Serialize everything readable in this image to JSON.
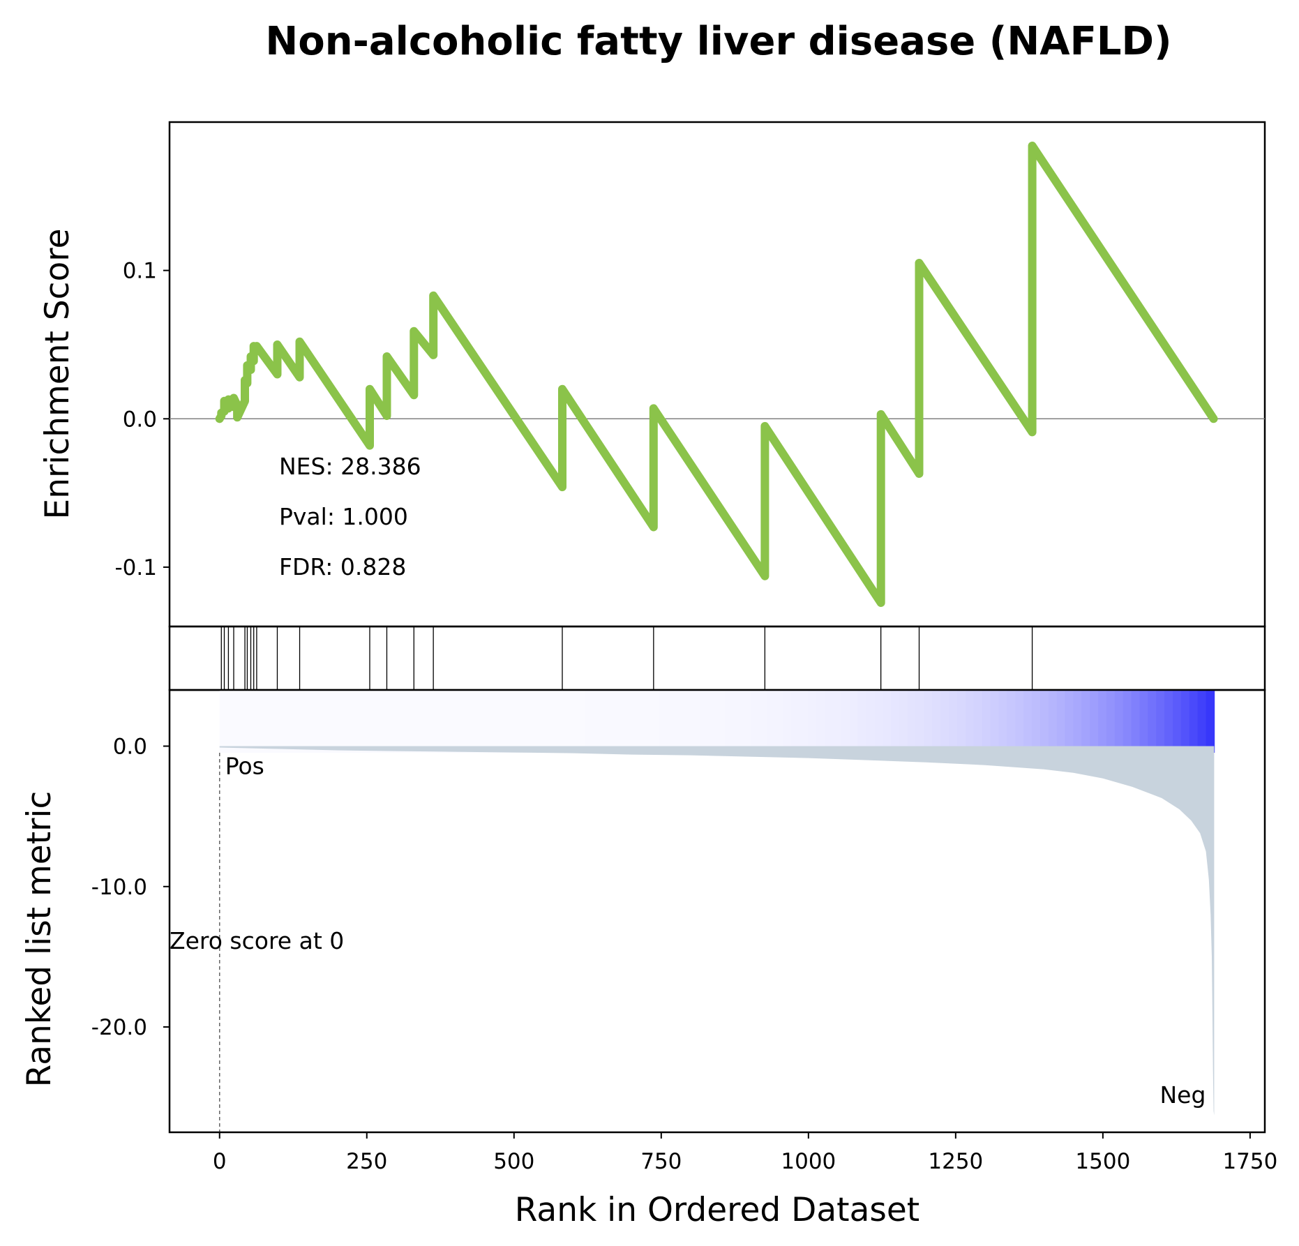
{
  "chart_data": {
    "type": "line",
    "title": "Non-alcoholic fatty liver disease (NAFLD)",
    "xlabel": "Rank in Ordered Dataset",
    "xlim": [
      -85,
      1775
    ],
    "x_ticks": [
      0,
      250,
      500,
      750,
      1000,
      1250,
      1500,
      1750
    ],
    "enrichment_panel": {
      "ylabel": "Enrichment Score",
      "ylim": [
        -0.14,
        0.2
      ],
      "y_ticks": [
        0.1,
        0.0,
        -0.1
      ],
      "y_tick_labels": [
        "0.1",
        "0.0",
        "-0.1"
      ],
      "line_color": "#8bc34a",
      "zero_line": true,
      "stats": {
        "nes": "NES: 28.386",
        "pval": "Pval: 1.000",
        "fdr": "FDR: 0.828"
      },
      "series": [
        {
          "x": [
            0,
            3,
            3,
            8,
            8,
            15,
            15,
            24,
            24,
            30,
            30,
            43,
            43,
            47,
            47,
            53,
            53,
            58,
            58,
            63,
            63,
            98,
            98,
            136,
            136,
            255,
            255,
            284,
            284,
            330,
            330,
            363,
            363,
            582,
            582,
            737,
            737,
            926,
            926,
            1123,
            1123,
            1188,
            1188,
            1380,
            1380,
            1688
          ],
          "y": [
            0.0,
            0.002,
            0.004,
            0.005,
            0.012,
            0.007,
            0.013,
            0.008,
            0.014,
            0.009,
            0.001,
            0.012,
            0.026,
            0.024,
            0.036,
            0.033,
            0.042,
            0.039,
            0.049,
            0.047,
            0.049,
            0.03,
            0.05,
            0.028,
            0.052,
            -0.018,
            0.02,
            0.002,
            0.042,
            0.016,
            0.059,
            0.043,
            0.083,
            -0.046,
            0.02,
            -0.073,
            0.007,
            -0.106,
            -0.005,
            -0.124,
            0.003,
            -0.037,
            0.105,
            -0.009,
            0.184,
            0.0
          ]
        }
      ]
    },
    "hits_panel": {
      "hit_ranks": [
        3,
        8,
        15,
        24,
        43,
        47,
        53,
        58,
        63,
        98,
        136,
        255,
        284,
        330,
        363,
        582,
        737,
        926,
        1123,
        1188,
        1380
      ]
    },
    "ranked_panel": {
      "ylabel": "Ranked list metric",
      "ylim": [
        -27.5,
        4.0
      ],
      "y_ticks": [
        0.0,
        -10.0,
        -20.0
      ],
      "y_tick_labels": [
        "0.0",
        "-10.0",
        "-20.0"
      ],
      "fill_color": "#c8d3dd",
      "pos_label": "Pos",
      "pos_color": "#ff0000",
      "neg_label": "Neg",
      "neg_color": "#0000ff",
      "zero_score_label": "Zero score at 0",
      "zero_score_rank": 0,
      "metric": {
        "x": [
          0,
          100,
          200,
          300,
          400,
          500,
          600,
          700,
          800,
          900,
          1000,
          1100,
          1200,
          1300,
          1400,
          1450,
          1500,
          1550,
          1600,
          1630,
          1650,
          1665,
          1675,
          1680,
          1683,
          1685,
          1686,
          1687,
          1688,
          1689
        ],
        "y": [
          -0.1,
          -0.2,
          -0.3,
          -0.35,
          -0.4,
          -0.45,
          -0.5,
          -0.6,
          -0.65,
          -0.75,
          -0.85,
          -1.0,
          -1.15,
          -1.35,
          -1.65,
          -1.9,
          -2.3,
          -2.9,
          -3.7,
          -4.5,
          -5.3,
          -6.2,
          -7.5,
          -9.5,
          -12.0,
          -15.0,
          -19.0,
          -23.0,
          -26.0,
          -26.3
        ]
      }
    }
  }
}
